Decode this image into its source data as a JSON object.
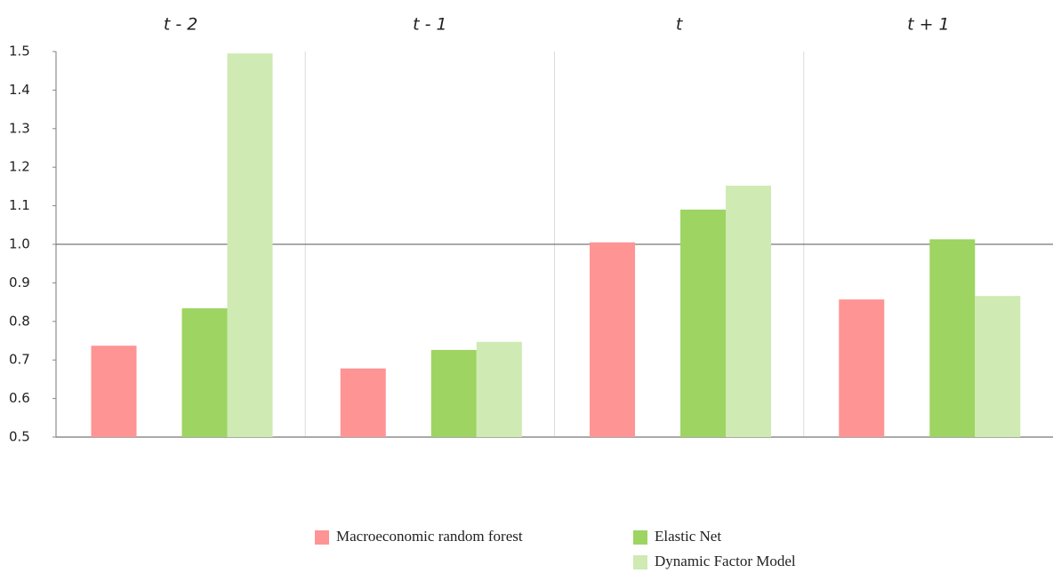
{
  "chart_data": {
    "type": "bar",
    "categories": [
      "t - 2",
      "t - 1",
      "t",
      "t + 1"
    ],
    "series": [
      {
        "name": "Macroeconomic random forest",
        "color": "#ff9494",
        "values": [
          0.737,
          0.678,
          1.005,
          0.857
        ]
      },
      {
        "name": "Elastic Net",
        "color": "#9dd462",
        "values": [
          0.834,
          0.726,
          1.09,
          1.013
        ]
      },
      {
        "name": "Dynamic Factor Model",
        "color": "#cfeab2",
        "values": [
          1.495,
          0.747,
          1.152,
          0.866
        ]
      }
    ],
    "ylim": [
      0.5,
      1.5
    ],
    "yticks": [
      0.5,
      0.6,
      0.7,
      0.8,
      0.9,
      {
        "value": 1,
        "label": "1.0"
      },
      1.1,
      1.2,
      1.3,
      1.4,
      1.5
    ],
    "reference_line": 1,
    "grid": false
  }
}
